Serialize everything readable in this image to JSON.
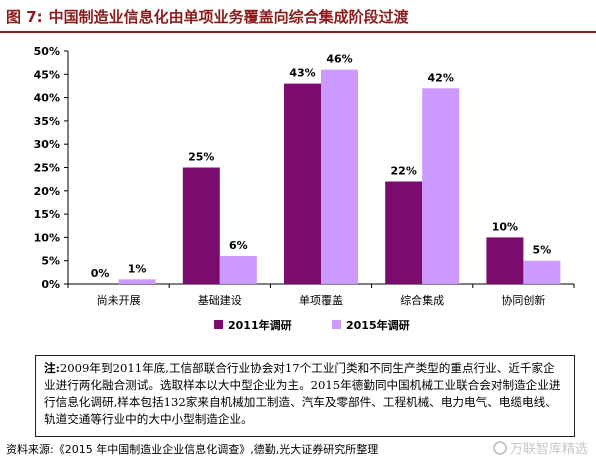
{
  "figure": {
    "label": "图 7:",
    "title": "中国制造业信息化由单项业务覆盖向综合集成阶段过渡"
  },
  "chart_data": {
    "type": "bar",
    "categories": [
      "尚未开展",
      "基础建设",
      "单项覆盖",
      "综合集成",
      "协同创新"
    ],
    "series": [
      {
        "name": "2011年调研",
        "values": [
          0,
          25,
          43,
          22,
          10
        ],
        "labels": [
          "0%",
          "25%",
          "43%",
          "22%",
          "10%"
        ],
        "color": "#7b0c6e"
      },
      {
        "name": "2015年调研",
        "values": [
          1,
          6,
          46,
          42,
          5
        ],
        "labels": [
          "1%",
          "6%",
          "46%",
          "42%",
          "5%"
        ],
        "color": "#cc99ff"
      }
    ],
    "ylim": [
      0,
      50
    ],
    "yticks": [
      0,
      5,
      10,
      15,
      20,
      25,
      30,
      35,
      40,
      45,
      50
    ],
    "ytick_labels": [
      "0%",
      "5%",
      "10%",
      "15%",
      "20%",
      "25%",
      "30%",
      "35%",
      "40%",
      "45%",
      "50%"
    ],
    "grid": false,
    "legend_position": "bottom"
  },
  "note": {
    "prefix": "注:",
    "text": "2009年到2011年底,工信部联合行业协会对17个工业门类和不同生产类型的重点行业、近千家企业进行两化融合测试。选取样本以大中型企业为主。2015年德勤同中国机械工业联合会对制造企业进行信息化调研,样本包括132家来自机械加工制造、汽车及零部件、工程机械、电力电气、电缆电线、轨道交通等行业中的大中小型制造企业。"
  },
  "source": "资料来源:《2015 年中国制造业企业信息化调查》,德勤,光大证券研究所整理",
  "watermark": "万联智库精选",
  "colors": {
    "title": "#8b1c1c",
    "series_2011": "#7b0c6e",
    "series_2015": "#cc99ff"
  }
}
